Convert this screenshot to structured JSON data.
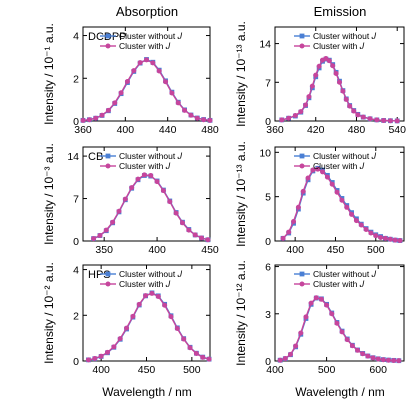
{
  "column_titles": [
    "Absorption",
    "Emission"
  ],
  "xlabel": "Wavelength / nm",
  "colors": {
    "without": "#4a7fd4",
    "with": "#c6459c"
  },
  "chart_data": [
    {
      "type": "line",
      "panel_label": "DCDPP",
      "ylabel": "Intensity / 10⁻¹ a.u.",
      "xlim": [
        360,
        480
      ],
      "ylim": [
        0,
        4.4
      ],
      "xticks": [
        360,
        400,
        440,
        480
      ],
      "yticks": [
        0,
        2,
        4
      ],
      "legend": "top-right",
      "series": [
        {
          "name": "Cluster without 𝐽",
          "x": [
            360,
            366,
            372,
            378,
            384,
            390,
            396,
            402,
            408,
            414,
            420,
            426,
            432,
            438,
            444,
            450,
            456,
            462,
            468,
            474,
            480
          ],
          "y": [
            0.03,
            0.06,
            0.13,
            0.26,
            0.48,
            0.82,
            1.28,
            1.8,
            2.32,
            2.71,
            2.88,
            2.75,
            2.38,
            1.88,
            1.35,
            0.88,
            0.52,
            0.28,
            0.14,
            0.07,
            0.03
          ]
        },
        {
          "name": "Cluster with 𝐽",
          "x": [
            360,
            366,
            372,
            378,
            384,
            390,
            396,
            402,
            408,
            414,
            420,
            426,
            432,
            438,
            444,
            450,
            456,
            462,
            468,
            474,
            480
          ],
          "y": [
            0.03,
            0.06,
            0.13,
            0.27,
            0.5,
            0.85,
            1.32,
            1.85,
            2.36,
            2.73,
            2.86,
            2.72,
            2.34,
            1.84,
            1.31,
            0.85,
            0.5,
            0.27,
            0.13,
            0.06,
            0.03
          ]
        }
      ]
    },
    {
      "type": "line",
      "panel_label": "",
      "ylabel": "Intensity / 10⁻¹³ a.u.",
      "xlim": [
        360,
        550
      ],
      "ylim": [
        0,
        17
      ],
      "xticks": [
        360,
        420,
        480,
        540
      ],
      "yticks": [
        0,
        7,
        14
      ],
      "legend": "top-right",
      "series": [
        {
          "name": "Cluster without 𝐽",
          "x": [
            370,
            380,
            390,
            398,
            405,
            410,
            415,
            420,
            425,
            430,
            435,
            440,
            445,
            450,
            455,
            460,
            465,
            470,
            476,
            482,
            490,
            500,
            510,
            520,
            530,
            540
          ],
          "y": [
            0.2,
            0.5,
            0.9,
            1.6,
            2.8,
            4.2,
            6.0,
            8.0,
            9.6,
            10.8,
            11.2,
            11.0,
            10.2,
            8.8,
            7.2,
            5.5,
            4.0,
            2.8,
            1.9,
            1.2,
            0.7,
            0.4,
            0.2,
            0.1,
            0.05,
            0.02
          ]
        },
        {
          "name": "Cluster with 𝐽",
          "x": [
            370,
            380,
            390,
            398,
            405,
            410,
            415,
            420,
            425,
            430,
            435,
            440,
            445,
            450,
            455,
            460,
            465,
            470,
            476,
            482,
            490,
            500,
            510,
            520,
            530,
            540
          ],
          "y": [
            0.2,
            0.5,
            1.0,
            1.7,
            2.9,
            4.4,
            6.3,
            8.3,
            9.9,
            11.0,
            11.3,
            10.9,
            10.0,
            8.6,
            7.0,
            5.4,
            3.9,
            2.7,
            1.8,
            1.1,
            0.7,
            0.4,
            0.2,
            0.1,
            0.05,
            0.02
          ]
        }
      ]
    },
    {
      "type": "line",
      "panel_label": "CB",
      "ylabel": "Intensity / 10⁻³ a.u.",
      "xlim": [
        330,
        450
      ],
      "ylim": [
        0,
        15.5
      ],
      "xticks": [
        350,
        400,
        450
      ],
      "yticks": [
        0,
        7,
        14
      ],
      "legend": "top-right",
      "series": [
        {
          "name": "Cluster without 𝐽",
          "x": [
            340,
            346,
            352,
            358,
            364,
            370,
            376,
            382,
            388,
            394,
            400,
            406,
            412,
            418,
            424,
            430,
            436,
            442,
            448
          ],
          "y": [
            0.4,
            0.9,
            1.7,
            3.0,
            4.8,
            6.8,
            8.7,
            10.1,
            10.8,
            10.7,
            9.9,
            8.4,
            6.6,
            4.7,
            3.1,
            1.9,
            1.0,
            0.5,
            0.2
          ]
        },
        {
          "name": "Cluster with 𝐽",
          "x": [
            340,
            346,
            352,
            358,
            364,
            370,
            376,
            382,
            388,
            394,
            400,
            406,
            412,
            418,
            424,
            430,
            436,
            442,
            448
          ],
          "y": [
            0.4,
            0.9,
            1.8,
            3.1,
            4.9,
            6.9,
            8.8,
            10.2,
            10.9,
            10.8,
            9.8,
            8.3,
            6.5,
            4.6,
            3.0,
            1.8,
            1.0,
            0.5,
            0.2
          ]
        }
      ]
    },
    {
      "type": "line",
      "panel_label": "",
      "ylabel": "Intensity / 10⁻¹³ a.u.",
      "xlim": [
        375,
        535
      ],
      "ylim": [
        0,
        10.6
      ],
      "xticks": [
        400,
        450,
        500
      ],
      "yticks": [
        0,
        5,
        10
      ],
      "legend": "top-right",
      "series": [
        {
          "name": "Cluster without 𝐽",
          "x": [
            385,
            392,
            398,
            404,
            410,
            416,
            422,
            428,
            434,
            440,
            446,
            452,
            458,
            464,
            470,
            476,
            482,
            488,
            494,
            500,
            506,
            512,
            518,
            524,
            530
          ],
          "y": [
            0.3,
            0.9,
            2.0,
            3.6,
            5.4,
            6.9,
            7.9,
            8.2,
            8.0,
            7.4,
            6.6,
            5.7,
            4.8,
            4.0,
            3.2,
            2.5,
            1.9,
            1.4,
            1.0,
            0.7,
            0.5,
            0.3,
            0.2,
            0.1,
            0.05
          ]
        },
        {
          "name": "Cluster with 𝐽",
          "x": [
            385,
            392,
            398,
            404,
            410,
            416,
            422,
            428,
            434,
            440,
            446,
            452,
            458,
            464,
            470,
            476,
            482,
            488,
            494,
            500,
            506,
            512,
            518,
            524,
            530
          ],
          "y": [
            0.3,
            1.0,
            2.2,
            3.8,
            5.6,
            7.1,
            8.0,
            8.1,
            7.8,
            7.2,
            6.4,
            5.5,
            4.6,
            3.8,
            3.0,
            2.3,
            1.8,
            1.3,
            0.9,
            0.6,
            0.4,
            0.3,
            0.2,
            0.1,
            0.05
          ]
        }
      ]
    },
    {
      "type": "line",
      "panel_label": "HPS",
      "ylabel": "Intensity / 10⁻² a.u.",
      "xlim": [
        380,
        520
      ],
      "ylim": [
        0,
        4.2
      ],
      "xticks": [
        400,
        450,
        500
      ],
      "yticks": [
        0,
        2,
        4
      ],
      "legend": "top-right",
      "series": [
        {
          "name": "Cluster without 𝐽",
          "x": [
            386,
            393,
            400,
            407,
            414,
            421,
            428,
            435,
            442,
            449,
            456,
            463,
            470,
            477,
            484,
            491,
            498,
            505,
            512,
            519
          ],
          "y": [
            0.05,
            0.1,
            0.2,
            0.36,
            0.6,
            0.95,
            1.4,
            1.92,
            2.45,
            2.85,
            2.98,
            2.85,
            2.48,
            1.98,
            1.45,
            0.98,
            0.6,
            0.34,
            0.17,
            0.08
          ]
        },
        {
          "name": "Cluster with 𝐽",
          "x": [
            386,
            393,
            400,
            407,
            414,
            421,
            428,
            435,
            442,
            449,
            456,
            463,
            470,
            477,
            484,
            491,
            498,
            505,
            512,
            519
          ],
          "y": [
            0.05,
            0.11,
            0.21,
            0.38,
            0.62,
            0.98,
            1.44,
            1.95,
            2.48,
            2.86,
            2.96,
            2.82,
            2.44,
            1.94,
            1.42,
            0.96,
            0.58,
            0.33,
            0.16,
            0.08
          ]
        }
      ]
    },
    {
      "type": "line",
      "panel_label": "",
      "ylabel": "Intensity / 10⁻¹² a.u.",
      "xlim": [
        400,
        650
      ],
      "ylim": [
        0,
        6.1
      ],
      "xticks": [
        400,
        500,
        600
      ],
      "yticks": [
        0,
        3,
        6
      ],
      "legend": "top-right",
      "series": [
        {
          "name": "Cluster without 𝐽",
          "x": [
            410,
            420,
            430,
            440,
            450,
            460,
            470,
            480,
            490,
            500,
            510,
            520,
            530,
            540,
            550,
            560,
            570,
            580,
            590,
            600,
            610,
            620,
            630,
            640
          ],
          "y": [
            0.05,
            0.15,
            0.4,
            0.9,
            1.7,
            2.7,
            3.6,
            4.0,
            3.95,
            3.6,
            3.05,
            2.45,
            1.9,
            1.4,
            1.0,
            0.7,
            0.48,
            0.32,
            0.21,
            0.14,
            0.09,
            0.06,
            0.04,
            0.02
          ]
        },
        {
          "name": "Cluster with 𝐽",
          "x": [
            410,
            420,
            430,
            440,
            450,
            460,
            470,
            480,
            490,
            500,
            510,
            520,
            530,
            540,
            550,
            560,
            570,
            580,
            590,
            600,
            610,
            620,
            630,
            640
          ],
          "y": [
            0.05,
            0.16,
            0.42,
            0.95,
            1.78,
            2.8,
            3.68,
            4.02,
            3.92,
            3.55,
            3.0,
            2.4,
            1.85,
            1.36,
            0.97,
            0.68,
            0.46,
            0.31,
            0.2,
            0.13,
            0.08,
            0.05,
            0.03,
            0.02
          ]
        }
      ]
    }
  ]
}
